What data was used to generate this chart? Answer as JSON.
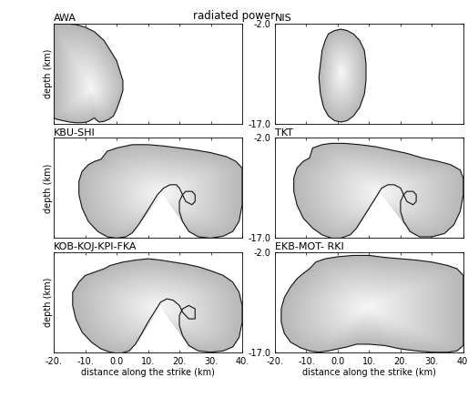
{
  "title": "radiated power",
  "xlim": [
    -20,
    40
  ],
  "xticks": [
    -20,
    -10,
    0,
    10,
    20,
    30,
    40
  ],
  "xticklabels": [
    "-20.",
    "-10.",
    "0.0",
    "10.",
    "20.",
    "30.",
    "40."
  ],
  "panels": [
    {
      "label": "AWA",
      "row": 0,
      "col": 0,
      "ylim": [
        -17,
        -2
      ],
      "yticks": [],
      "yticklabels": [],
      "show_ylabel": true,
      "shape": "awa"
    },
    {
      "label": "NIS",
      "row": 0,
      "col": 1,
      "ylim": [
        -17,
        -2
      ],
      "yticks": [
        -17.0,
        -2.0
      ],
      "yticklabels": [
        "-17.0",
        "-2.0"
      ],
      "show_ylabel": false,
      "shape": "nis"
    },
    {
      "label": "KBU-SHI",
      "row": 1,
      "col": 0,
      "ylim": [
        -17,
        -2
      ],
      "yticks": [],
      "yticklabels": [],
      "show_ylabel": true,
      "shape": "kbu"
    },
    {
      "label": "TKT",
      "row": 1,
      "col": 1,
      "ylim": [
        -17,
        -2
      ],
      "yticks": [
        -17.0,
        -2.0
      ],
      "yticklabels": [
        "-17.0",
        "-2.0"
      ],
      "show_ylabel": false,
      "shape": "tkt"
    },
    {
      "label": "KOB-KOJ-KPI-FKA",
      "row": 2,
      "col": 0,
      "ylim": [
        -17,
        -2
      ],
      "yticks": [],
      "yticklabels": [],
      "show_ylabel": true,
      "shape": "kob"
    },
    {
      "label": "EKB-MOT- RKI",
      "row": 2,
      "col": 1,
      "ylim": [
        -17,
        -2
      ],
      "yticks": [
        -17.0,
        -2.0
      ],
      "yticklabels": [
        "-17.0",
        "-2.0"
      ],
      "show_ylabel": false,
      "shape": "ekb"
    }
  ]
}
